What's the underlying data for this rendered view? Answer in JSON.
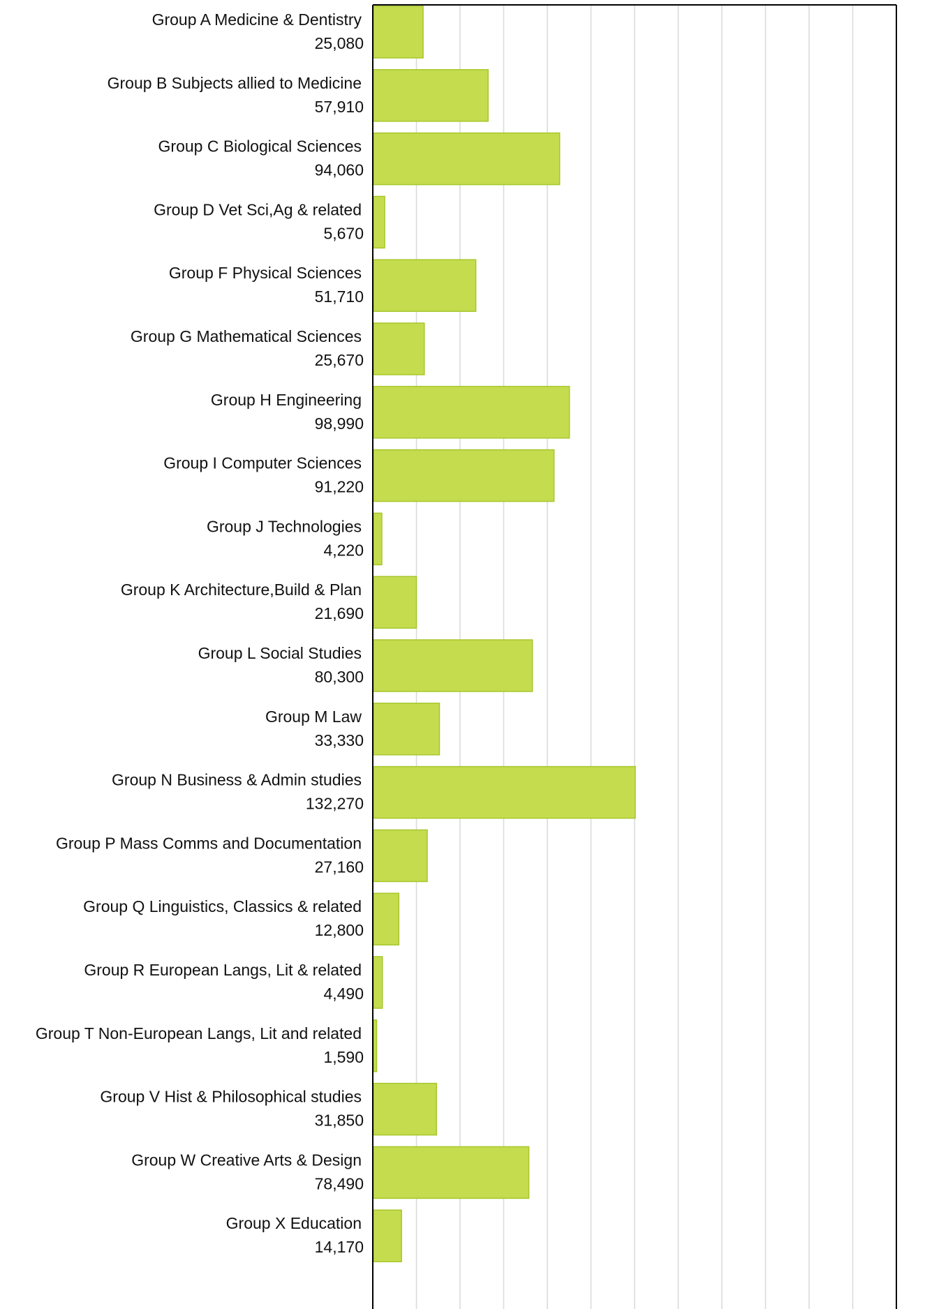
{
  "chart_data": {
    "type": "bar",
    "orientation": "horizontal",
    "title": "",
    "xlabel": "",
    "ylabel": "",
    "xlim": [
      0,
      264540
    ],
    "grid": true,
    "legend": "none",
    "bar_color": "#c5dc4f",
    "bar_edge_color": "#a6c72c",
    "grid_color": "#d9d9d9",
    "categories": [
      "Group A Medicine & Dentistry",
      "Group B Subjects allied to Medicine",
      "Group C Biological Sciences",
      "Group D Vet Sci,Ag & related",
      "Group F Physical Sciences",
      "Group G Mathematical Sciences",
      "Group H Engineering",
      "Group I Computer Sciences",
      "Group J Technologies",
      "Group K Architecture,Build & Plan",
      "Group L Social Studies",
      "Group M Law",
      "Group N Business & Admin studies",
      "Group P Mass Comms and Documentation",
      "Group Q Linguistics, Classics & related",
      "Group R European Langs, Lit & related",
      "Group T Non-European Langs, Lit and related",
      "Group V Hist & Philosophical studies",
      "Group W Creative Arts & Design",
      "Group X Education"
    ],
    "values": [
      25080,
      57910,
      94060,
      5670,
      51710,
      25670,
      98990,
      91220,
      4220,
      21690,
      80300,
      33330,
      132270,
      27160,
      12800,
      4490,
      1590,
      31850,
      78490,
      14170
    ],
    "value_labels": [
      "25,080",
      "57,910",
      "94,060",
      "5,670",
      "51,710",
      "25,670",
      "98,990",
      "91,220",
      "4,220",
      "21,690",
      "80,300",
      "33,330",
      "132,270",
      "27,160",
      "12,800",
      "4,490",
      "1,590",
      "31,850",
      "78,490",
      "14,170"
    ]
  }
}
